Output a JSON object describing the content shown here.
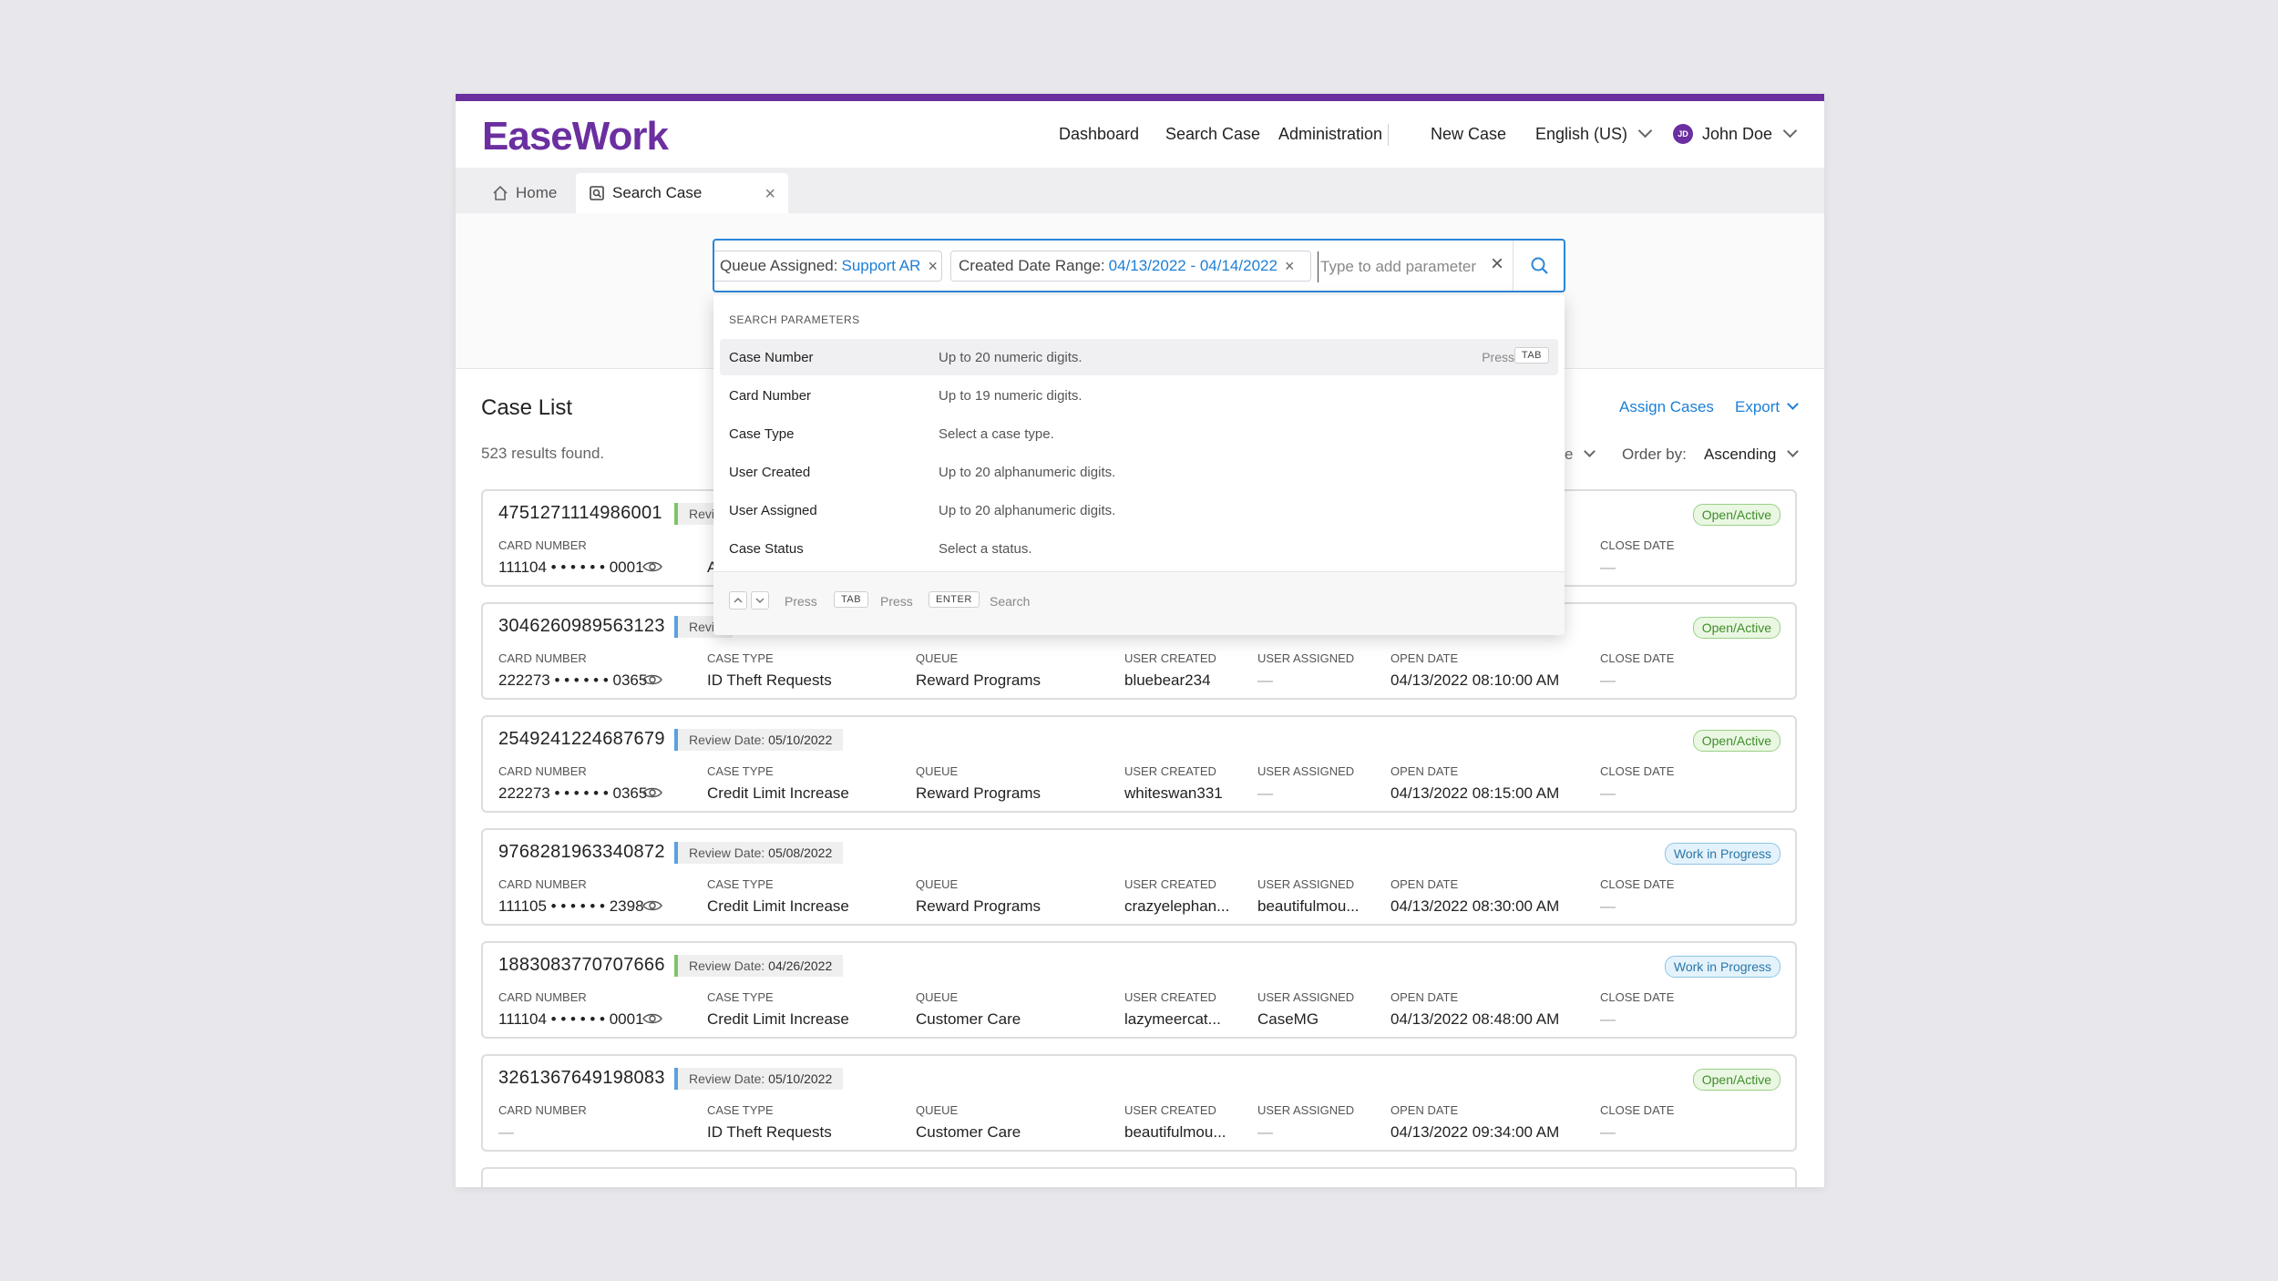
{
  "app": {
    "logo": "EaseWork"
  },
  "nav": {
    "dashboard": "Dashboard",
    "search_case": "Search Case",
    "administration": "Administration",
    "new_case": "New Case",
    "language": "English (US)",
    "user_initials": "JD",
    "user_name": "John Doe"
  },
  "tabs": {
    "home": "Home",
    "search_case": "Search Case"
  },
  "search": {
    "chips": [
      {
        "key": "Queue Assigned:",
        "value": "Support AR"
      },
      {
        "key": "Created Date Range:",
        "value": "04/13/2022 - 04/14/2022"
      }
    ],
    "placeholder": "Type to add parameter"
  },
  "dropdown": {
    "heading": "SEARCH PARAMETERS",
    "items": [
      {
        "name": "Case Number",
        "desc": "Up to 20 numeric digits."
      },
      {
        "name": "Card Number",
        "desc": "Up to 19 numeric digits."
      },
      {
        "name": "Case Type",
        "desc": "Select a case type."
      },
      {
        "name": "User Created",
        "desc": "Up to 20 alphanumeric digits."
      },
      {
        "name": "User Assigned",
        "desc": "Up to 20 alphanumeric digits."
      },
      {
        "name": "Case Status",
        "desc": "Select a status."
      }
    ],
    "press": "Press",
    "tab_key": "TAB",
    "enter_key": "ENTER",
    "search_word": "Search"
  },
  "case_list": {
    "title": "Case List",
    "count": "523 results found.",
    "assign": "Assign Cases",
    "export": "Export",
    "sort_tail": "e",
    "order_label": "Order by:",
    "order_value": "Ascending",
    "labels": {
      "card": "CARD NUMBER",
      "type": "CASE TYPE",
      "queue": "QUEUE",
      "created": "USER CREATED",
      "assigned": "USER ASSIGNED",
      "open": "OPEN DATE",
      "close": "CLOSE DATE"
    },
    "rows": [
      {
        "case_no": "4751271114986001",
        "review": "Revie",
        "status": "Open/Active",
        "card": "111104 • • • • • • 0001",
        "type": "A",
        "queue": "",
        "created": "",
        "assigned": "",
        "open": "",
        "close": "—"
      },
      {
        "case_no": "3046260989563123",
        "review": "Revie",
        "status": "Open/Active",
        "card": "222273 • • • • • • 0365",
        "type": "ID Theft Requests",
        "queue": "Reward Programs",
        "created": "bluebear234",
        "assigned": "—",
        "open": "04/13/2022 08:10:00 AM",
        "close": "—"
      },
      {
        "case_no": "2549241224687679",
        "review_label": "Review Date:",
        "review_date": "05/10/2022",
        "status": "Open/Active",
        "card": "222273 • • • • • • 0365",
        "type": "Credit Limit Increase",
        "queue": "Reward Programs",
        "created": "whiteswan331",
        "assigned": "—",
        "open": "04/13/2022 08:15:00 AM",
        "close": "—"
      },
      {
        "case_no": "9768281963340872",
        "review_label": "Review Date:",
        "review_date": "05/08/2022",
        "status": "Work in Progress",
        "card": "111105 • • • • • • 2398",
        "type": "Credit Limit Increase",
        "queue": "Reward Programs",
        "created": "crazyelephan...",
        "assigned": "beautifulmou...",
        "open": "04/13/2022 08:30:00 AM",
        "close": "—"
      },
      {
        "case_no": "1883083770707666",
        "review_label": "Review Date:",
        "review_date": "04/26/2022",
        "status": "Work in Progress",
        "card": "111104 • • • • • • 0001",
        "type": "Credit Limit Increase",
        "queue": "Customer Care",
        "created": "lazymeercat...",
        "assigned": "CaseMG",
        "open": "04/13/2022 08:48:00 AM",
        "close": "—"
      },
      {
        "case_no": "3261367649198083",
        "review_label": "Review Date:",
        "review_date": "05/10/2022",
        "status": "Open/Active",
        "card": "—",
        "type": "ID Theft Requests",
        "queue": "Customer Care",
        "created": "beautifulmou...",
        "assigned": "—",
        "open": "04/13/2022 09:34:00 AM",
        "close": "—"
      }
    ]
  },
  "colors": {
    "brand": "#6b2fa0",
    "link": "#1c7fd6",
    "open_status": "#3e8d2a",
    "wip_status": "#2a77a8"
  }
}
